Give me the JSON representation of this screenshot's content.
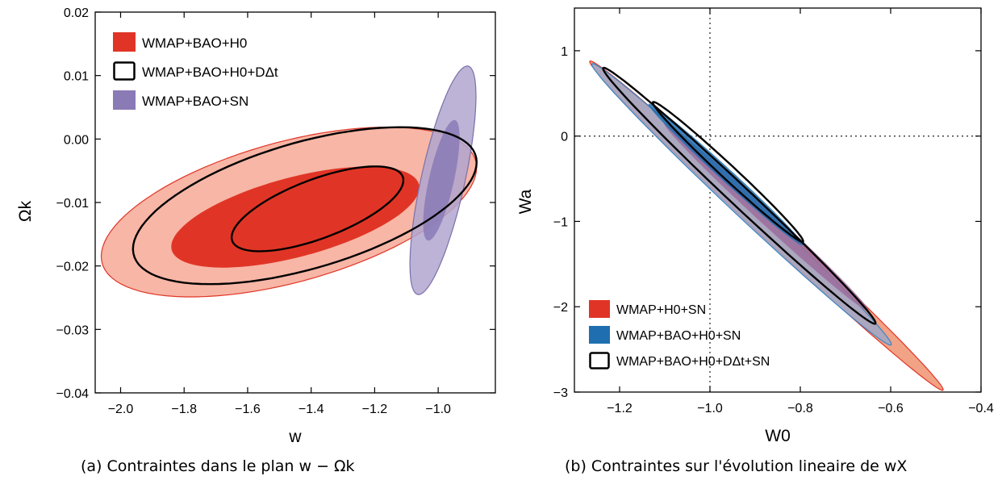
{
  "chart_data": [
    {
      "type": "area",
      "panel": "a",
      "caption": "(a) Contraintes dans le plan w − Ωk",
      "xlabel": "w",
      "ylabel": "Ωk",
      "xlim": [
        -2.08,
        -0.82
      ],
      "ylim": [
        -0.04,
        0.02
      ],
      "xticks": [
        -2.0,
        -1.8,
        -1.6,
        -1.4,
        -1.2,
        -1.0
      ],
      "xtick_labels": [
        "−2.0",
        "−1.8",
        "−1.6",
        "−1.4",
        "−1.2",
        "−1.0"
      ],
      "yticks": [
        0.02,
        0.01,
        0.0,
        -0.01,
        -0.02,
        -0.03,
        -0.04
      ],
      "ytick_labels": [
        "0.02",
        "0.01",
        "0.00",
        "−0.01",
        "−0.02",
        "−0.03",
        "−0.04"
      ],
      "legend_position": "top-left",
      "legend": [
        {
          "label": "WMAP+BAO+H0",
          "style": "fill",
          "color": "#e03526"
        },
        {
          "label": "WMAP+BAO+H0+DΔt",
          "style": "outline",
          "color": "#000000"
        },
        {
          "label": "WMAP+BAO+SN",
          "style": "fill",
          "color": "#8a7ab6"
        }
      ],
      "series": [
        {
          "name": "WMAP+BAO+H0",
          "contour": "95%",
          "fill": "#f7b6a6",
          "stroke": "#e03526",
          "center": [
            -1.47,
            -0.0115
          ],
          "semi_major": [
            0.59,
            0.0063
          ],
          "semi_minor": [
            0.035,
            0.0118
          ]
        },
        {
          "name": "WMAP+BAO+H0",
          "contour": "68%",
          "fill": "#e03526",
          "stroke": "none",
          "center": [
            -1.45,
            -0.0123
          ],
          "semi_major": [
            0.39,
            0.0043
          ],
          "semi_minor": [
            0.021,
            0.0067
          ]
        },
        {
          "name": "WMAP+BAO+SN",
          "contour": "95%",
          "fill": "#b0a6cf",
          "stroke": "#7c6fa9",
          "center": [
            -0.985,
            -0.0065
          ],
          "semi_major": [
            0.075,
            0.018
          ],
          "semi_minor": [
            0.072,
            0.0004
          ]
        },
        {
          "name": "WMAP+BAO+SN",
          "contour": "68%",
          "fill": "#8a7ab6",
          "stroke": "none",
          "center": [
            -0.99,
            -0.0065
          ],
          "semi_major": [
            0.04,
            0.0095
          ],
          "semi_minor": [
            0.041,
            0.0002
          ]
        },
        {
          "name": "WMAP+BAO+H0+DΔt",
          "contour": "95%",
          "fill": "none",
          "stroke": "#000000",
          "center": [
            -1.42,
            -0.0105
          ],
          "semi_major": [
            0.54,
            0.0062
          ],
          "semi_minor": [
            0.033,
            0.0107
          ]
        },
        {
          "name": "WMAP+BAO+H0+DΔt",
          "contour": "68%",
          "fill": "none",
          "stroke": "#000000",
          "center": [
            -1.38,
            -0.011
          ],
          "semi_major": [
            0.27,
            0.0042
          ],
          "semi_minor": [
            0.016,
            0.0052
          ]
        }
      ]
    },
    {
      "type": "area",
      "panel": "b",
      "caption": "(b) Contraintes sur l'évolution lineaire de wX",
      "xlabel": "W0",
      "ylabel": "Wa",
      "xlim": [
        -1.3,
        -0.4
      ],
      "ylim": [
        -3.0,
        1.5
      ],
      "xticks": [
        -1.2,
        -1.0,
        -0.8,
        -0.6,
        -0.4
      ],
      "xtick_labels": [
        "−1.2",
        "−1.0",
        "−0.8",
        "−0.6",
        "−0.4"
      ],
      "yticks": [
        1,
        0,
        -1,
        -2,
        -3
      ],
      "ytick_labels": [
        "1",
        "0",
        "−1",
        "−2",
        "−3"
      ],
      "reference_lines": {
        "x": -1.0,
        "y": 0.0
      },
      "legend_position": "bottom-left",
      "legend": [
        {
          "label": "WMAP+H0+SN",
          "style": "fill",
          "color": "#e03526"
        },
        {
          "label": "WMAP+BAO+H0+SN",
          "style": "fill",
          "color": "#1f6fb0"
        },
        {
          "label": "WMAP+BAO+H0+DΔt+SN",
          "style": "outline",
          "color": "#000000"
        }
      ],
      "series": [
        {
          "name": "WMAP+H0+SN",
          "contour": "95%",
          "fill": "#f2a285",
          "stroke": "#e03526",
          "center": [
            -0.875,
            -1.05
          ],
          "semi_major": [
            0.39,
            -1.93
          ],
          "semi_minor": [
            0.033,
            0.0067
          ]
        },
        {
          "name": "WMAP+BAO+H0+SN",
          "contour": "95%",
          "fill": "#9ea8c8",
          "stroke": "#3a85c4",
          "center": [
            -0.93,
            -0.8
          ],
          "semi_major": [
            0.33,
            -1.65
          ],
          "semi_minor": [
            0.033,
            0.0067
          ]
        },
        {
          "name": "WMAP+H0+SN",
          "contour": "68%",
          "fill": "#9c6c9c",
          "stroke": "none",
          "center": [
            -0.875,
            -0.95
          ],
          "semi_major": [
            0.225,
            -1.1
          ],
          "semi_minor": [
            0.023,
            0.0047
          ]
        },
        {
          "name": "WMAP+BAO+H0+SN",
          "contour": "68%",
          "fill": "#1f6fb0",
          "stroke": "none",
          "center": [
            -0.965,
            -0.45
          ],
          "semi_major": [
            0.17,
            -0.83
          ],
          "semi_minor": [
            0.02,
            0.0041
          ]
        },
        {
          "name": "WMAP+BAO+H0+DΔt+SN",
          "contour": "95%",
          "fill": "none",
          "stroke": "#000000",
          "center": [
            -0.935,
            -0.7
          ],
          "semi_major": [
            0.3,
            -1.5
          ],
          "semi_minor": [
            0.031,
            0.0063
          ]
        },
        {
          "name": "WMAP+BAO+H0+DΔt+SN",
          "contour": "68%",
          "fill": "none",
          "stroke": "#000000",
          "center": [
            -0.96,
            -0.42
          ],
          "semi_major": [
            0.165,
            -0.82
          ],
          "semi_minor": [
            0.022,
            0.0045
          ]
        }
      ]
    }
  ]
}
